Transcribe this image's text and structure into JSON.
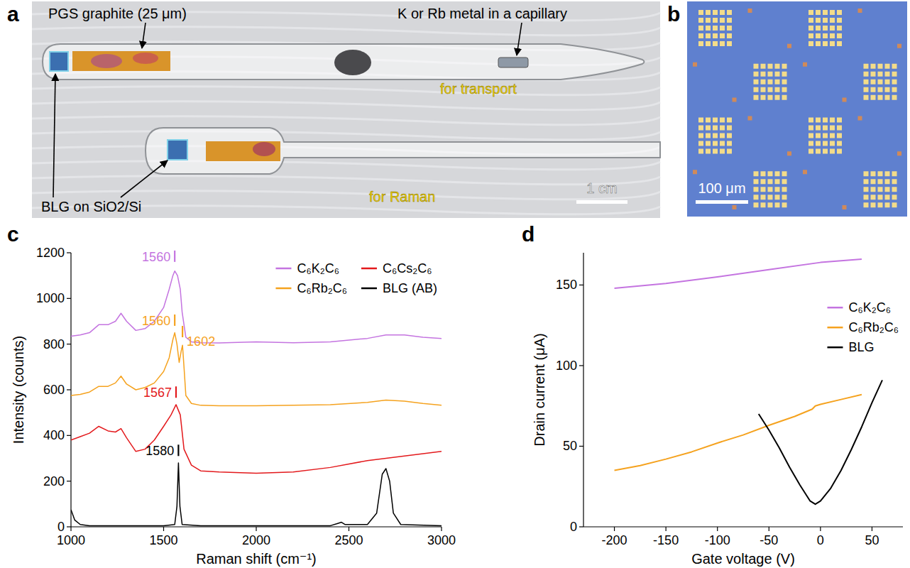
{
  "photos": [
    {
      "panel_label": "a",
      "labels": [
        "PGS graphite (25 μm)",
        "K or Rb metal in a capillary",
        "BLG on SiO2/Si"
      ],
      "captions": [
        "for transport",
        "for Raman"
      ],
      "scale_bar": "1 cm"
    },
    {
      "panel_label": "b",
      "scale_bar": "100 μm"
    }
  ],
  "chart_data": [
    {
      "type": "line",
      "panel_label": "c",
      "x_label": "Raman shift (cm⁻¹)",
      "y_label": "Intensity (counts)",
      "xlim": [
        1000,
        3000
      ],
      "xticks": [
        1000,
        1500,
        2000,
        2500,
        3000
      ],
      "ylim": [
        0,
        1200
      ],
      "yticks": [
        0,
        200,
        400,
        600,
        800,
        1000,
        1200
      ],
      "grid": false,
      "legend": "upper right",
      "series": [
        {
          "name": "C₆K₂C₆",
          "color": "#c474e0",
          "x": [
            1000,
            1050,
            1100,
            1150,
            1200,
            1240,
            1270,
            1300,
            1350,
            1400,
            1450,
            1500,
            1530,
            1550,
            1560,
            1575,
            1590,
            1600,
            1620,
            1650,
            1700,
            1800,
            2000,
            2200,
            2400,
            2600,
            2700,
            2800,
            2900,
            3000
          ],
          "values": [
            835,
            840,
            850,
            885,
            885,
            900,
            935,
            900,
            860,
            868,
            900,
            960,
            1040,
            1100,
            1120,
            1100,
            1040,
            940,
            830,
            810,
            806,
            805,
            810,
            806,
            810,
            825,
            840,
            840,
            830,
            825
          ],
          "annotations": [
            {
              "text": "1560",
              "x": 1560,
              "y": 1160
            }
          ]
        },
        {
          "name": "C₆Rb₂C₆",
          "color": "#f5a21e",
          "x": [
            1000,
            1050,
            1100,
            1150,
            1200,
            1240,
            1270,
            1300,
            1350,
            1400,
            1450,
            1500,
            1530,
            1550,
            1560,
            1572,
            1584,
            1595,
            1602,
            1610,
            1620,
            1650,
            1700,
            1800,
            2000,
            2200,
            2400,
            2600,
            2700,
            2800,
            2900,
            3000
          ],
          "values": [
            575,
            580,
            590,
            615,
            615,
            630,
            660,
            625,
            600,
            610,
            630,
            680,
            740,
            820,
            850,
            800,
            720,
            770,
            795,
            700,
            575,
            540,
            532,
            530,
            530,
            532,
            535,
            545,
            555,
            550,
            540,
            532
          ],
          "annotations": [
            {
              "text": "1560",
              "x": 1560,
              "y": 880
            },
            {
              "text": "1602",
              "x": 1602,
              "y": 830
            }
          ]
        },
        {
          "name": "C₆Cs₂C₆",
          "color": "#e3191c",
          "x": [
            1000,
            1050,
            1100,
            1150,
            1200,
            1240,
            1270,
            1300,
            1350,
            1400,
            1450,
            1500,
            1540,
            1567,
            1590,
            1610,
            1650,
            1700,
            1800,
            2000,
            2200,
            2400,
            2600,
            2800,
            3000
          ],
          "values": [
            380,
            395,
            410,
            440,
            420,
            415,
            430,
            390,
            330,
            340,
            380,
            440,
            490,
            535,
            490,
            340,
            270,
            245,
            240,
            235,
            240,
            260,
            290,
            310,
            330
          ],
          "annotations": [
            {
              "text": "1567",
              "x": 1567,
              "y": 565
            }
          ]
        },
        {
          "name": "BLG (AB)",
          "color": "#000000",
          "x": [
            1000,
            1020,
            1050,
            1100,
            1500,
            1560,
            1572,
            1580,
            1588,
            1600,
            1700,
            2400,
            2440,
            2460,
            2480,
            2600,
            2650,
            2680,
            2700,
            2720,
            2740,
            2780,
            3000
          ],
          "values": [
            75,
            30,
            10,
            5,
            5,
            10,
            90,
            280,
            90,
            10,
            5,
            5,
            15,
            20,
            10,
            10,
            60,
            230,
            255,
            200,
            60,
            10,
            5
          ],
          "annotations": [
            {
              "text": "1580",
              "x": 1580,
              "y": 310
            }
          ]
        }
      ]
    },
    {
      "type": "line",
      "panel_label": "d",
      "x_label": "Gate voltage (V)",
      "y_label": "Drain current (μA)",
      "xlim": [
        -230,
        80
      ],
      "xticks": [
        -200,
        -150,
        -100,
        -50,
        0,
        50
      ],
      "ylim": [
        0,
        170
      ],
      "yticks": [
        0,
        50,
        100,
        150
      ],
      "grid": false,
      "legend": "right",
      "series": [
        {
          "name": "C₆K₂C₆",
          "color": "#c474e0",
          "x": [
            -200,
            -150,
            -100,
            -50,
            0,
            40
          ],
          "values": [
            148,
            151,
            155,
            159.5,
            164,
            166
          ]
        },
        {
          "name": "C₆Rb₂C₆",
          "color": "#f5a21e",
          "x": [
            -200,
            -175,
            -150,
            -125,
            -100,
            -75,
            -50,
            -25,
            -8,
            -5,
            0,
            20,
            40
          ],
          "values": [
            35,
            38,
            42,
            46.5,
            52,
            57,
            63,
            68.5,
            73,
            75,
            76,
            79,
            82
          ]
        },
        {
          "name": "BLG",
          "color": "#000000",
          "x": [
            -60,
            -50,
            -40,
            -30,
            -20,
            -10,
            -5,
            0,
            10,
            20,
            30,
            40,
            50,
            60
          ],
          "values": [
            70,
            60,
            49,
            37,
            26,
            16,
            14,
            16,
            24,
            35,
            48,
            62,
            77,
            91
          ]
        }
      ]
    }
  ]
}
